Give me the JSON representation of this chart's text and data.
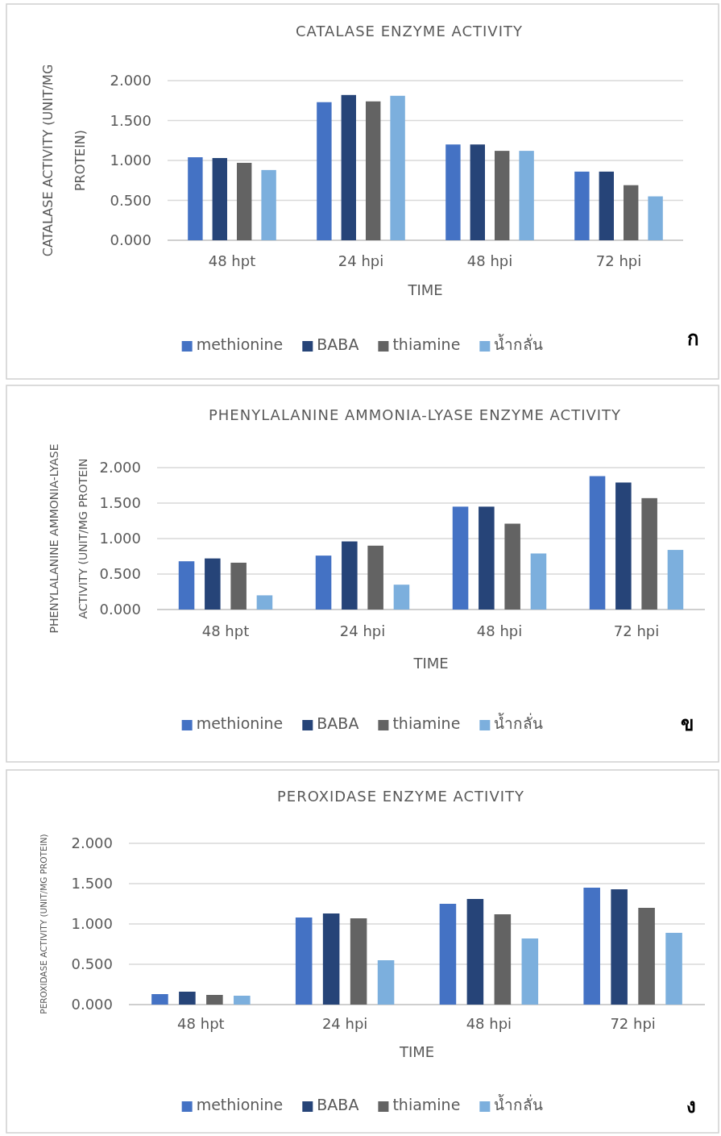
{
  "chart_data": [
    {
      "type": "bar",
      "title": "CATALASE ENZYME ACTIVITY",
      "xlabel": "TIME",
      "ylabel": "CATALASE ACTIVITY (UNIT/MG PROTEIN)",
      "categories": [
        "48 hpt",
        "24 hpi",
        "48 hpi",
        "72 hpi"
      ],
      "series": [
        {
          "name": "methionine",
          "color": "#4472c4",
          "values": [
            1.04,
            1.73,
            1.2,
            0.86
          ]
        },
        {
          "name": "BABA",
          "color": "#264478",
          "values": [
            1.03,
            1.82,
            1.2,
            0.86
          ]
        },
        {
          "name": "thiamine",
          "color": "#636363",
          "values": [
            0.97,
            1.74,
            1.12,
            0.69
          ]
        },
        {
          "name": "น้ำกลั่น",
          "color": "#7cafdd",
          "values": [
            0.88,
            1.81,
            1.12,
            0.55
          ]
        }
      ],
      "ylim": [
        0,
        2
      ],
      "yticks": [
        {
          "value": 0,
          "label": "0.000"
        },
        {
          "value": 0.5,
          "label": "0.500"
        },
        {
          "value": 1,
          "label": "1.000"
        },
        {
          "value": 1.5,
          "label": "1.500"
        },
        {
          "value": 2,
          "label": "2.000"
        }
      ],
      "grid": "y",
      "legend": "bottom",
      "annotations": [
        "ก"
      ]
    },
    {
      "type": "bar",
      "title": "PHENYLALANINE  AMMONIA-LYASE ENZYME ACTIVITY",
      "xlabel": "TIME",
      "ylabel": "PHENYLALANINE  AMMONIA-LYASE ACTIVITY (UNIT/MG PROTEIN",
      "categories": [
        "48 hpt",
        "24 hpi",
        "48 hpi",
        "72 hpi"
      ],
      "series": [
        {
          "name": "methionine",
          "color": "#4472c4",
          "values": [
            0.68,
            0.76,
            1.45,
            1.88
          ]
        },
        {
          "name": "BABA",
          "color": "#264478",
          "values": [
            0.72,
            0.96,
            1.45,
            1.79
          ]
        },
        {
          "name": "thiamine",
          "color": "#636363",
          "values": [
            0.66,
            0.9,
            1.21,
            1.57
          ]
        },
        {
          "name": "น้ำกลั่น",
          "color": "#7cafdd",
          "values": [
            0.2,
            0.35,
            0.79,
            0.84
          ]
        }
      ],
      "ylim": [
        0,
        2
      ],
      "yticks": [
        {
          "value": 0,
          "label": "0.000"
        },
        {
          "value": 0.5,
          "label": "0.500"
        },
        {
          "value": 1,
          "label": "1.000"
        },
        {
          "value": 1.5,
          "label": "1.500"
        },
        {
          "value": 2,
          "label": "2.000"
        }
      ],
      "grid": "y",
      "legend": "bottom",
      "annotations": [
        "ข"
      ]
    },
    {
      "type": "bar",
      "title": "PEROXIDASE ENZYME ACTIVITY",
      "xlabel": "TIME",
      "ylabel": "PEROXIDASE ACTIVITY (UNIT/MG PROTEIN)",
      "categories": [
        "48 hpt",
        "24 hpi",
        "48 hpi",
        "72 hpi"
      ],
      "series": [
        {
          "name": "methionine",
          "color": "#4472c4",
          "values": [
            0.13,
            1.08,
            1.25,
            1.45
          ]
        },
        {
          "name": "BABA",
          "color": "#264478",
          "values": [
            0.16,
            1.13,
            1.31,
            1.43
          ]
        },
        {
          "name": "thiamine",
          "color": "#636363",
          "values": [
            0.12,
            1.07,
            1.12,
            1.2
          ]
        },
        {
          "name": "น้ำกลั่น",
          "color": "#7cafdd",
          "values": [
            0.11,
            0.55,
            0.82,
            0.89
          ]
        }
      ],
      "ylim": [
        0,
        2
      ],
      "yticks": [
        {
          "value": 0,
          "label": "0.000"
        },
        {
          "value": 0.5,
          "label": "0.500"
        },
        {
          "value": 1,
          "label": "1.000"
        },
        {
          "value": 1.5,
          "label": "1.500"
        },
        {
          "value": 2,
          "label": "2.000"
        }
      ],
      "grid": "y",
      "legend": "bottom",
      "annotations": [
        "ง"
      ]
    }
  ]
}
